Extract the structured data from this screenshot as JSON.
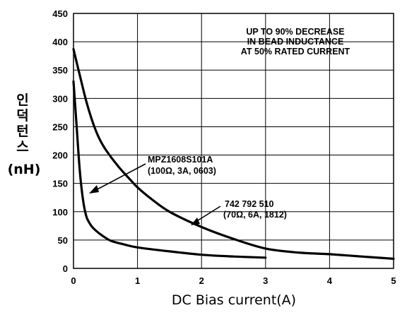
{
  "chart_data": {
    "type": "line",
    "ylabel": "인덕턴스",
    "ylabel_unit": "(nH)",
    "xlabel": "DC Bias current(A)",
    "xlim": [
      0,
      5
    ],
    "ylim": [
      0,
      450
    ],
    "x_ticks": [
      "0",
      "1",
      "2",
      "3",
      "4",
      "5"
    ],
    "y_ticks": [
      "0",
      "50",
      "100",
      "150",
      "200",
      "250",
      "300",
      "350",
      "400",
      "450"
    ],
    "grid": true,
    "note": [
      "UP TO 90% DECREASE",
      "IN BEAD INDUCTANCE",
      "AT 50% RATED CURRENT"
    ],
    "series": [
      {
        "name": "MPZ1608S101A",
        "spec": "(100Ω, 3A, 0603)",
        "x": [
          0.0,
          0.05,
          0.1,
          0.15,
          0.2,
          0.25,
          0.3,
          0.4,
          0.5,
          0.6,
          0.8,
          1.0,
          1.5,
          2.0,
          2.5,
          3.0
        ],
        "y": [
          330,
          250,
          170,
          120,
          92,
          80,
          72,
          62,
          54,
          48,
          42,
          37,
          30,
          24,
          21,
          19
        ]
      },
      {
        "name": "742 792 510",
        "spec": "(70Ω, 6A, 1812)",
        "x": [
          0.0,
          0.1,
          0.2,
          0.3,
          0.4,
          0.5,
          0.7,
          0.9,
          1.0,
          1.2,
          1.5,
          2.0,
          2.5,
          3.0,
          3.5,
          4.0,
          4.5,
          5.0
        ],
        "y": [
          387,
          340,
          295,
          258,
          230,
          210,
          180,
          155,
          143,
          124,
          100,
          73,
          52,
          35,
          28,
          25,
          21,
          17
        ]
      }
    ]
  }
}
